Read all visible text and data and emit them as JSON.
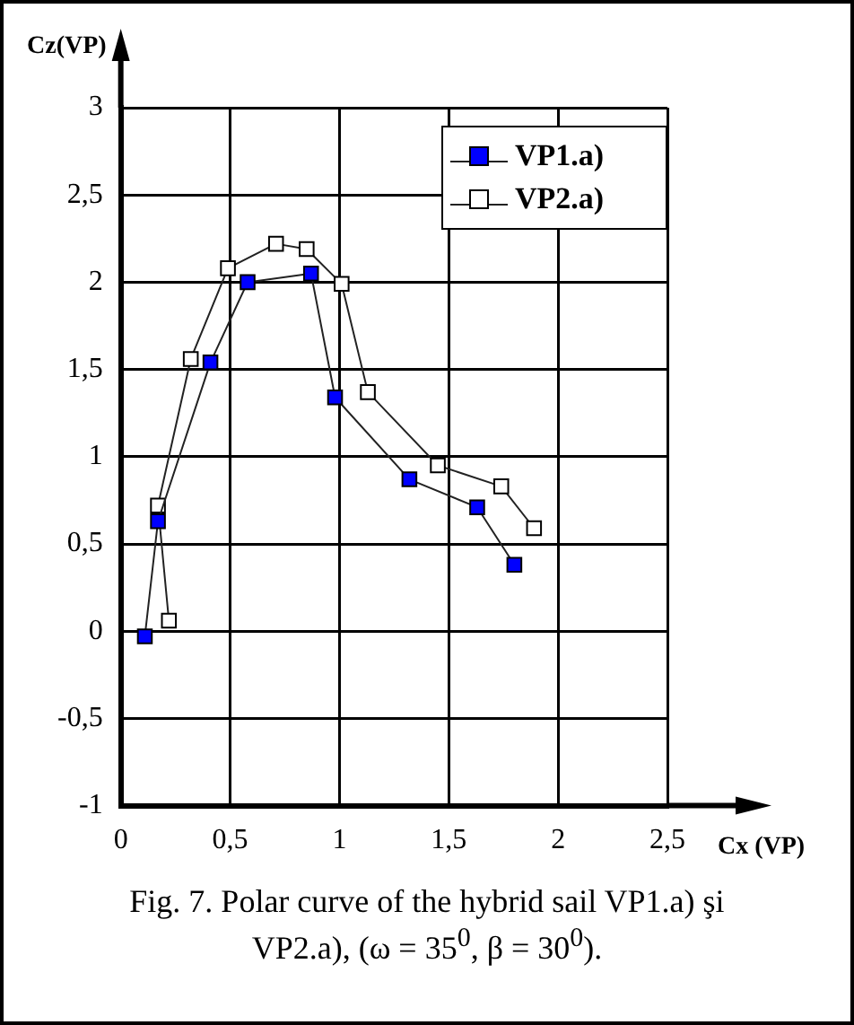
{
  "chart_data": {
    "type": "line",
    "xlabel": "Cx (VP)",
    "ylabel": "Cz(VP)",
    "series": [
      {
        "name": "VP1.a)",
        "color": "#0000ff",
        "x": [
          0.11,
          0.17,
          0.41,
          0.58,
          0.87,
          0.98,
          1.32,
          1.63,
          1.8
        ],
        "values": [
          -0.03,
          0.63,
          1.54,
          2.0,
          2.05,
          1.34,
          0.87,
          0.71,
          0.38
        ]
      },
      {
        "name": "VP2.a)",
        "color": "#ffffff",
        "x": [
          0.22,
          0.17,
          0.32,
          0.49,
          0.71,
          0.85,
          1.01,
          1.13,
          1.45,
          1.74,
          1.89
        ],
        "values": [
          0.06,
          0.72,
          1.56,
          2.08,
          2.22,
          2.19,
          1.99,
          1.37,
          0.95,
          0.83,
          0.59
        ]
      }
    ],
    "xlim": [
      0,
      2.5
    ],
    "xticks": [
      0,
      {
        "value": 0.5,
        "label": "0,5"
      },
      1,
      {
        "value": 1.5,
        "label": "1,5"
      },
      2,
      {
        "value": 2.5,
        "label": "2,5"
      }
    ],
    "ylim": [
      -1,
      3
    ],
    "yticks": [
      -1,
      {
        "value": -0.5,
        "label": "-0,5"
      },
      0,
      {
        "value": 0.5,
        "label": "0,5"
      },
      1,
      {
        "value": 1.5,
        "label": "1,5"
      },
      2,
      {
        "value": 2.5,
        "label": "2,5"
      },
      3
    ],
    "grid": true,
    "legend": "top right",
    "marker": "square",
    "line_style": "solid",
    "annotations": [
      "Fig. 7. Polar curve of the hybrid sail VP1.a) şi VP2.a), (ω = 35$^{0}$, β = 30$^{0}$)."
    ]
  }
}
